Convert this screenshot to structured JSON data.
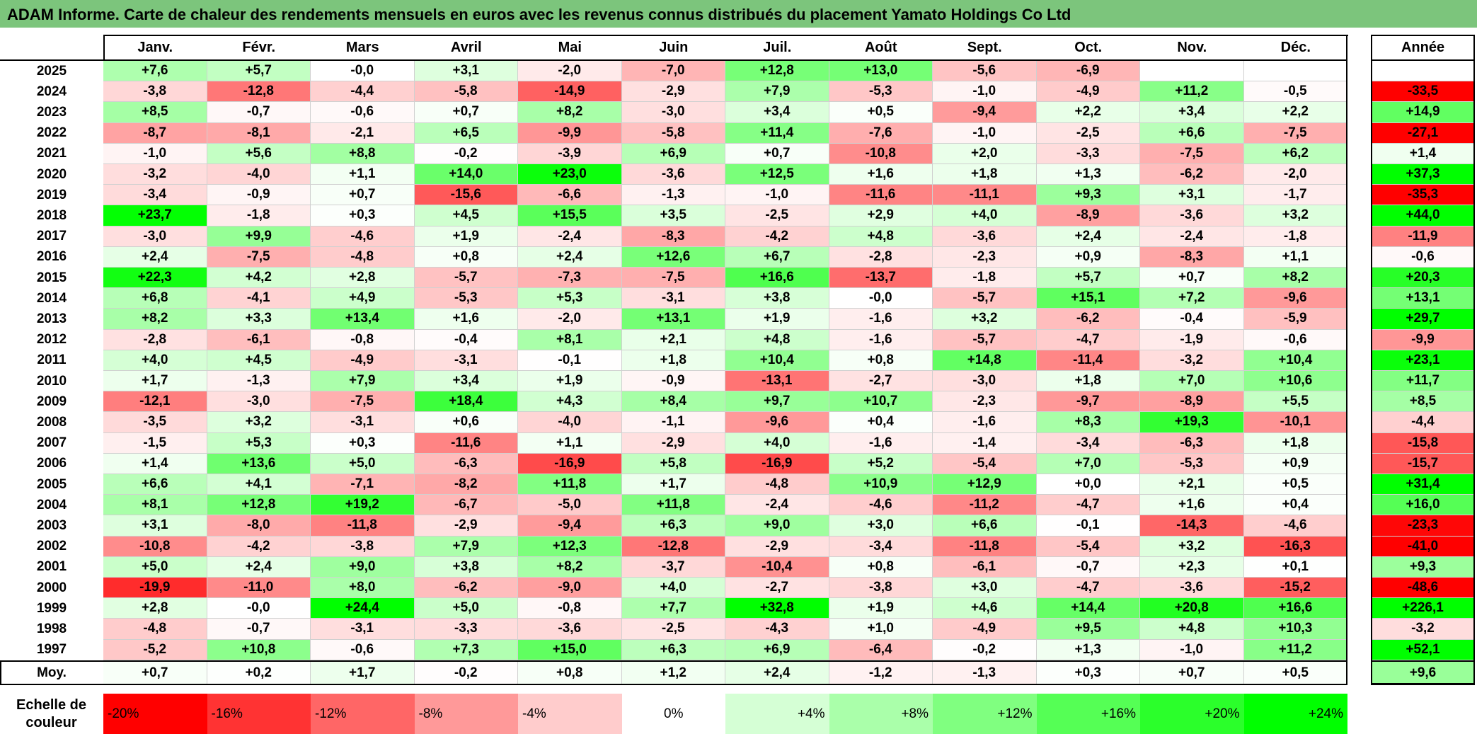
{
  "title": "ADAM Informe. Carte de chaleur des rendements mensuels en euros avec les revenus connus distribués du placement Yamato Holdings Co Ltd",
  "chart_data": {
    "type": "heatmap",
    "months": [
      "Janv.",
      "Févr.",
      "Mars",
      "Avril",
      "Mai",
      "Juin",
      "Juil.",
      "Août",
      "Sept.",
      "Oct.",
      "Nov.",
      "Déc."
    ],
    "annual_label": "Année",
    "rows": [
      {
        "year": "2025",
        "values": [
          "+7,6",
          "+5,7",
          "-0,0",
          "+3,1",
          "-2,0",
          "-7,0",
          "+12,8",
          "+13,0",
          "-5,6",
          "-6,9",
          "",
          ""
        ],
        "annual": ""
      },
      {
        "year": "2024",
        "values": [
          "-3,8",
          "-12,8",
          "-4,4",
          "-5,8",
          "-14,9",
          "-2,9",
          "+7,9",
          "-5,3",
          "-1,0",
          "-4,9",
          "+11,2",
          "-0,5"
        ],
        "annual": "-33,5"
      },
      {
        "year": "2023",
        "values": [
          "+8,5",
          "-0,7",
          "-0,6",
          "+0,7",
          "+8,2",
          "-3,0",
          "+3,4",
          "+0,5",
          "-9,4",
          "+2,2",
          "+3,4",
          "+2,2"
        ],
        "annual": "+14,9"
      },
      {
        "year": "2022",
        "values": [
          "-8,7",
          "-8,1",
          "-2,1",
          "+6,5",
          "-9,9",
          "-5,8",
          "+11,4",
          "-7,6",
          "-1,0",
          "-2,5",
          "+6,6",
          "-7,5"
        ],
        "annual": "-27,1"
      },
      {
        "year": "2021",
        "values": [
          "-1,0",
          "+5,6",
          "+8,8",
          "-0,2",
          "-3,9",
          "+6,9",
          "+0,7",
          "-10,8",
          "+2,0",
          "-3,3",
          "-7,5",
          "+6,2"
        ],
        "annual": "+1,4"
      },
      {
        "year": "2020",
        "values": [
          "-3,2",
          "-4,0",
          "+1,1",
          "+14,0",
          "+23,0",
          "-3,6",
          "+12,5",
          "+1,6",
          "+1,8",
          "+1,3",
          "-6,2",
          "-2,0"
        ],
        "annual": "+37,3"
      },
      {
        "year": "2019",
        "values": [
          "-3,4",
          "-0,9",
          "+0,7",
          "-15,6",
          "-6,6",
          "-1,3",
          "-1,0",
          "-11,6",
          "-11,1",
          "+9,3",
          "+3,1",
          "-1,7"
        ],
        "annual": "-35,3"
      },
      {
        "year": "2018",
        "values": [
          "+23,7",
          "-1,8",
          "+0,3",
          "+4,5",
          "+15,5",
          "+3,5",
          "-2,5",
          "+2,9",
          "+4,0",
          "-8,9",
          "-3,6",
          "+3,2"
        ],
        "annual": "+44,0"
      },
      {
        "year": "2017",
        "values": [
          "-3,0",
          "+9,9",
          "-4,6",
          "+1,9",
          "-2,4",
          "-8,3",
          "-4,2",
          "+4,8",
          "-3,6",
          "+2,4",
          "-2,4",
          "-1,8"
        ],
        "annual": "-11,9"
      },
      {
        "year": "2016",
        "values": [
          "+2,4",
          "-7,5",
          "-4,8",
          "+0,8",
          "+2,4",
          "+12,6",
          "+6,7",
          "-2,8",
          "-2,3",
          "+0,9",
          "-8,3",
          "+1,1"
        ],
        "annual": "-0,6"
      },
      {
        "year": "2015",
        "values": [
          "+22,3",
          "+4,2",
          "+2,8",
          "-5,7",
          "-7,3",
          "-7,5",
          "+16,6",
          "-13,7",
          "-1,8",
          "+5,7",
          "+0,7",
          "+8,2"
        ],
        "annual": "+20,3"
      },
      {
        "year": "2014",
        "values": [
          "+6,8",
          "-4,1",
          "+4,9",
          "-5,3",
          "+5,3",
          "-3,1",
          "+3,8",
          "-0,0",
          "-5,7",
          "+15,1",
          "+7,2",
          "-9,6"
        ],
        "annual": "+13,1"
      },
      {
        "year": "2013",
        "values": [
          "+8,2",
          "+3,3",
          "+13,4",
          "+1,6",
          "-2,0",
          "+13,1",
          "+1,9",
          "-1,6",
          "+3,2",
          "-6,2",
          "-0,4",
          "-5,9"
        ],
        "annual": "+29,7"
      },
      {
        "year": "2012",
        "values": [
          "-2,8",
          "-6,1",
          "-0,8",
          "-0,4",
          "+8,1",
          "+2,1",
          "+4,8",
          "-1,6",
          "-5,7",
          "-4,7",
          "-1,9",
          "-0,6"
        ],
        "annual": "-9,9"
      },
      {
        "year": "2011",
        "values": [
          "+4,0",
          "+4,5",
          "-4,9",
          "-3,1",
          "-0,1",
          "+1,8",
          "+10,4",
          "+0,8",
          "+14,8",
          "-11,4",
          "-3,2",
          "+10,4"
        ],
        "annual": "+23,1"
      },
      {
        "year": "2010",
        "values": [
          "+1,7",
          "-1,3",
          "+7,9",
          "+3,4",
          "+1,9",
          "-0,9",
          "-13,1",
          "-2,7",
          "-3,0",
          "+1,8",
          "+7,0",
          "+10,6"
        ],
        "annual": "+11,7"
      },
      {
        "year": "2009",
        "values": [
          "-12,1",
          "-3,0",
          "-7,5",
          "+18,4",
          "+4,3",
          "+8,4",
          "+9,7",
          "+10,7",
          "-2,3",
          "-9,7",
          "-8,9",
          "+5,5"
        ],
        "annual": "+8,5"
      },
      {
        "year": "2008",
        "values": [
          "-3,5",
          "+3,2",
          "-3,1",
          "+0,6",
          "-4,0",
          "-1,1",
          "-9,6",
          "+0,4",
          "-1,6",
          "+8,3",
          "+19,3",
          "-10,1"
        ],
        "annual": "-4,4"
      },
      {
        "year": "2007",
        "values": [
          "-1,5",
          "+5,3",
          "+0,3",
          "-11,6",
          "+1,1",
          "-2,9",
          "+4,0",
          "-1,6",
          "-1,4",
          "-3,4",
          "-6,3",
          "+1,8"
        ],
        "annual": "-15,8"
      },
      {
        "year": "2006",
        "values": [
          "+1,4",
          "+13,6",
          "+5,0",
          "-6,3",
          "-16,9",
          "+5,8",
          "-16,9",
          "+5,2",
          "-5,4",
          "+7,0",
          "-5,3",
          "+0,9"
        ],
        "annual": "-15,7"
      },
      {
        "year": "2005",
        "values": [
          "+6,6",
          "+4,1",
          "-7,1",
          "-8,2",
          "+11,8",
          "+1,7",
          "-4,8",
          "+10,9",
          "+12,9",
          "+0,0",
          "+2,1",
          "+0,5"
        ],
        "annual": "+31,4"
      },
      {
        "year": "2004",
        "values": [
          "+8,1",
          "+12,8",
          "+19,2",
          "-6,7",
          "-5,0",
          "+11,8",
          "-2,4",
          "-4,6",
          "-11,2",
          "-4,7",
          "+1,6",
          "+0,4"
        ],
        "annual": "+16,0"
      },
      {
        "year": "2003",
        "values": [
          "+3,1",
          "-8,0",
          "-11,8",
          "-2,9",
          "-9,4",
          "+6,3",
          "+9,0",
          "+3,0",
          "+6,6",
          "-0,1",
          "-14,3",
          "-4,6"
        ],
        "annual": "-23,3"
      },
      {
        "year": "2002",
        "values": [
          "-10,8",
          "-4,2",
          "-3,8",
          "+7,9",
          "+12,3",
          "-12,8",
          "-2,9",
          "-3,4",
          "-11,8",
          "-5,4",
          "+3,2",
          "-16,3"
        ],
        "annual": "-41,0"
      },
      {
        "year": "2001",
        "values": [
          "+5,0",
          "+2,4",
          "+9,0",
          "+3,8",
          "+8,2",
          "-3,7",
          "-10,4",
          "+0,8",
          "-6,1",
          "-0,7",
          "+2,3",
          "+0,1"
        ],
        "annual": "+9,3"
      },
      {
        "year": "2000",
        "values": [
          "-19,9",
          "-11,0",
          "+8,0",
          "-6,2",
          "-9,0",
          "+4,0",
          "-2,7",
          "-3,8",
          "+3,0",
          "-4,7",
          "-3,6",
          "-15,2"
        ],
        "annual": "-48,6"
      },
      {
        "year": "1999",
        "values": [
          "+2,8",
          "-0,0",
          "+24,4",
          "+5,0",
          "-0,8",
          "+7,7",
          "+32,8",
          "+1,9",
          "+4,6",
          "+14,4",
          "+20,8",
          "+16,6"
        ],
        "annual": "+226,1"
      },
      {
        "year": "1998",
        "values": [
          "-4,8",
          "-0,7",
          "-3,1",
          "-3,3",
          "-3,6",
          "-2,5",
          "-4,3",
          "+1,0",
          "-4,9",
          "+9,5",
          "+4,8",
          "+10,3"
        ],
        "annual": "-3,2"
      },
      {
        "year": "1997",
        "values": [
          "-5,2",
          "+10,8",
          "-0,6",
          "+7,3",
          "+15,0",
          "+6,3",
          "+6,9",
          "-6,4",
          "-0,2",
          "+1,3",
          "-1,0",
          "+11,2"
        ],
        "annual": "+52,1"
      }
    ],
    "average": {
      "label": "Moy.",
      "values": [
        "+0,7",
        "+0,2",
        "+1,7",
        "-0,2",
        "+0,8",
        "+1,2",
        "+2,4",
        "-1,2",
        "-1,3",
        "+0,3",
        "+0,7",
        "+0,5"
      ],
      "annual": "+9,6"
    },
    "color_scale": {
      "title": "Echelle de couleur",
      "stops": [
        {
          "label": "-20%",
          "value": -20,
          "color": "#ff0000"
        },
        {
          "label": "-16%",
          "value": -16,
          "color": "#ff3333"
        },
        {
          "label": "-12%",
          "value": -12,
          "color": "#ff6666"
        },
        {
          "label": "-8%",
          "value": -8,
          "color": "#ff9999"
        },
        {
          "label": "-4%",
          "value": -4,
          "color": "#ffcccc"
        },
        {
          "label": "0%",
          "value": 0,
          "color": "#ffffff"
        },
        {
          "label": "+4%",
          "value": 4,
          "color": "#d5ffd5"
        },
        {
          "label": "+8%",
          "value": 8,
          "color": "#aaffaa"
        },
        {
          "label": "+12%",
          "value": 12,
          "color": "#80ff80"
        },
        {
          "label": "+16%",
          "value": 16,
          "color": "#55ff55"
        },
        {
          "label": "+20%",
          "value": 20,
          "color": "#2bff2b"
        },
        {
          "label": "+24%",
          "value": 24,
          "color": "#00ff00"
        }
      ]
    }
  }
}
